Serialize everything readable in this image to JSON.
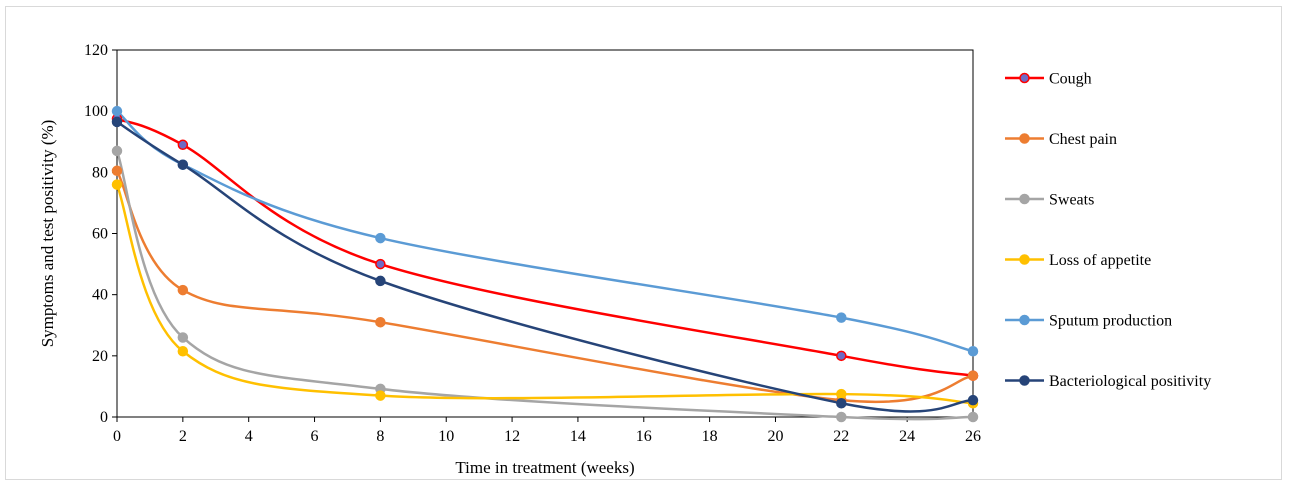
{
  "chart_data": {
    "type": "line",
    "title": "",
    "xlabel": "Time in treatment (weeks)",
    "ylabel": "Symptoms and test positivity (%)",
    "xlim": [
      0,
      26
    ],
    "ylim": [
      0,
      120
    ],
    "x_ticks": [
      0,
      2,
      4,
      6,
      8,
      10,
      12,
      14,
      16,
      18,
      20,
      22,
      24,
      26
    ],
    "y_ticks": [
      0,
      20,
      40,
      60,
      80,
      100,
      120
    ],
    "grid": false,
    "legend_position": "right",
    "x": [
      0,
      2,
      8,
      22,
      26
    ],
    "series": [
      {
        "name": "Cough",
        "color": "#ff0000",
        "marker_color": "#6f6ac4",
        "values": [
          97.5,
          89,
          50,
          20,
          13.5
        ]
      },
      {
        "name": "Chest pain",
        "color": "#ed7d31",
        "marker_color": "#ed7d31",
        "values": [
          80.5,
          41.5,
          31,
          5.5,
          13.5
        ]
      },
      {
        "name": "Sweats",
        "color": "#a5a5a5",
        "marker_color": "#a5a5a5",
        "values": [
          87,
          26,
          9.2,
          0,
          0
        ]
      },
      {
        "name": "Loss of appetite",
        "color": "#ffc000",
        "marker_color": "#ffc000",
        "values": [
          76,
          21.5,
          7,
          7.5,
          4.5
        ]
      },
      {
        "name": "Sputum production",
        "color": "#5b9bd5",
        "marker_color": "#5b9bd5",
        "values": [
          100,
          82.5,
          58.5,
          32.5,
          21.5
        ]
      },
      {
        "name": "Bacteriological positivity",
        "color": "#264478",
        "marker_color": "#264478",
        "values": [
          96.5,
          82.5,
          44.5,
          4.5,
          5.5
        ]
      }
    ]
  }
}
